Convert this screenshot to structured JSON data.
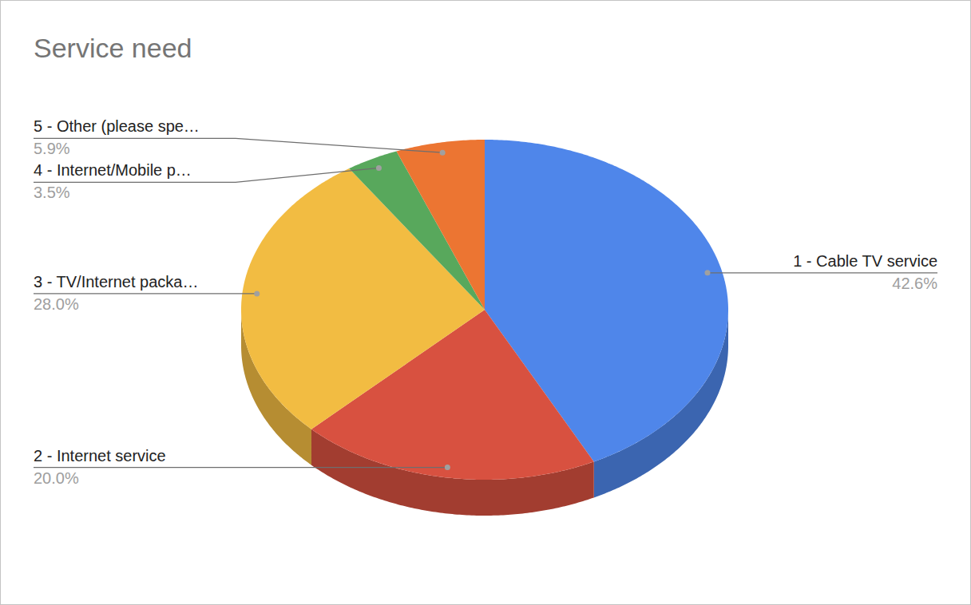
{
  "chart_data": {
    "type": "pie",
    "title": "Service need",
    "categories": [
      "1 - Cable TV service",
      "2 - Internet service",
      "3 - TV/Internet packa…",
      "4 - Internet/Mobile p…",
      "5 - Other (please spe…"
    ],
    "values": [
      42.6,
      20.0,
      28.0,
      3.5,
      5.9
    ],
    "value_labels": [
      "42.6%",
      "20.0%",
      "28.0%",
      "3.5%",
      "5.9%"
    ],
    "colors": [
      "#4f86ea",
      "#d85140",
      "#f2bc42",
      "#58a85c",
      "#ec7532"
    ],
    "data_labels": true
  }
}
